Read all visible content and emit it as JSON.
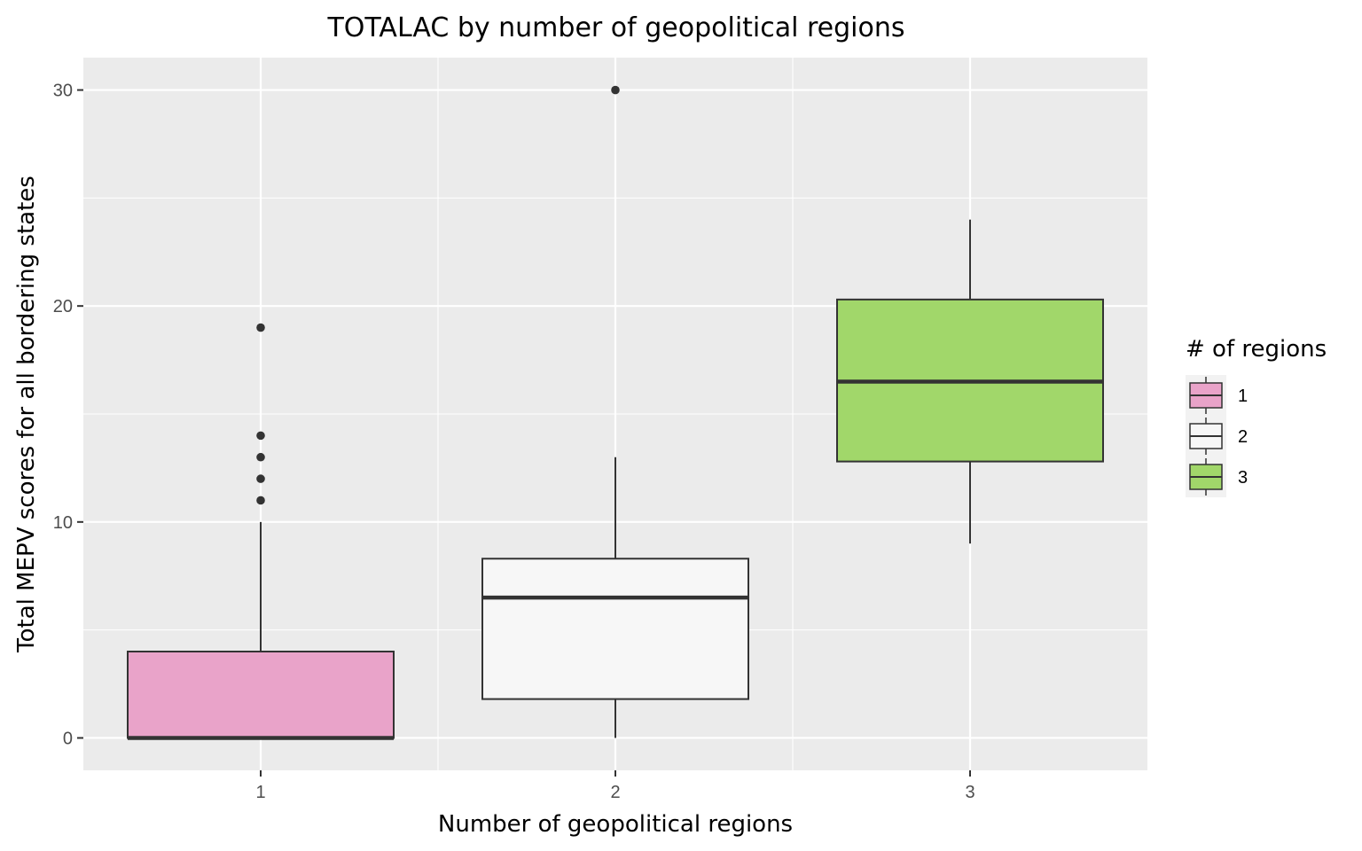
{
  "chart_data": {
    "type": "box",
    "title": "TOTALAC by number of geopolitical regions",
    "xlabel": "Number of geopolitical regions",
    "ylabel": "Total MEPV scores for all bordering states",
    "categories": [
      "1",
      "2",
      "3"
    ],
    "y_ticks": [
      "0",
      "10",
      "20",
      "30"
    ],
    "ylim": [
      -1.5,
      31.5
    ],
    "grid": true,
    "legend": {
      "title": "# of regions",
      "placement": "right",
      "entries": [
        "1",
        "2",
        "3"
      ]
    },
    "colors": [
      "#E9A3C9",
      "#F7F7F7",
      "#A1D76A"
    ],
    "boxes": [
      {
        "category": "1",
        "lower_whisker": 0,
        "q1": 0,
        "median": 0,
        "q3": 4,
        "upper_whisker": 10,
        "outliers": [
          11,
          12,
          13,
          14,
          19
        ]
      },
      {
        "category": "2",
        "lower_whisker": 0,
        "q1": 1.8,
        "median": 6.5,
        "q3": 8.3,
        "upper_whisker": 13,
        "outliers": [
          30
        ]
      },
      {
        "category": "3",
        "lower_whisker": 9,
        "q1": 12.8,
        "median": 16.5,
        "q3": 20.3,
        "upper_whisker": 24,
        "outliers": []
      }
    ]
  }
}
